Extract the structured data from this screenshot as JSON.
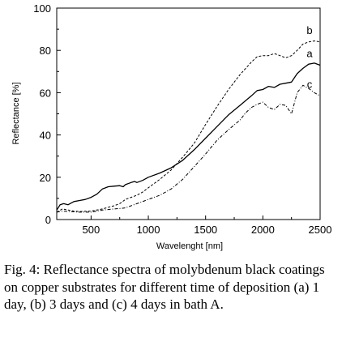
{
  "chart_data": {
    "type": "line",
    "xlabel": "Wavelenght [nm]",
    "ylabel": "Reflectance [%]",
    "xlim": [
      200,
      2500
    ],
    "ylim": [
      0,
      100
    ],
    "xticks": [
      500,
      1000,
      1500,
      2000,
      2500
    ],
    "yticks": [
      0,
      20,
      40,
      60,
      80,
      100
    ],
    "grid": false,
    "series": [
      {
        "name": "a",
        "style": "solid",
        "x": [
          200,
          230,
          260,
          300,
          350,
          400,
          450,
          500,
          550,
          600,
          650,
          700,
          750,
          780,
          800,
          850,
          880,
          900,
          950,
          1000,
          1100,
          1200,
          1300,
          1400,
          1500,
          1600,
          1700,
          1800,
          1900,
          1950,
          2000,
          2050,
          2100,
          2150,
          2200,
          2250,
          2300,
          2350,
          2400,
          2450,
          2500
        ],
        "y": [
          4.5,
          7,
          7.5,
          7,
          8.5,
          9,
          9.5,
          10.5,
          12,
          14.5,
          15.5,
          15.8,
          16,
          15.5,
          16.5,
          17.5,
          18,
          17.5,
          18.5,
          20,
          22,
          24.5,
          28,
          33,
          38.5,
          44,
          49.5,
          54,
          58.5,
          61,
          61.5,
          63,
          62.5,
          64,
          64.5,
          65,
          69,
          71.5,
          73.5,
          74,
          73
        ]
      },
      {
        "name": "b",
        "style": "dashed",
        "x": [
          200,
          250,
          300,
          350,
          400,
          500,
          600,
          700,
          750,
          800,
          850,
          900,
          950,
          1000,
          1100,
          1200,
          1300,
          1400,
          1500,
          1600,
          1700,
          1800,
          1900,
          1950,
          2000,
          2050,
          2100,
          2150,
          2200,
          2250,
          2300,
          2350,
          2400,
          2450,
          2500
        ],
        "y": [
          3.5,
          5,
          4.5,
          4,
          3.8,
          4,
          5,
          6.5,
          7.5,
          9.5,
          10.5,
          11.5,
          13,
          15,
          19,
          23.5,
          29.5,
          36,
          45,
          53.5,
          61.5,
          68.5,
          74.5,
          77,
          77.5,
          77.5,
          78.5,
          77.5,
          76.5,
          77.5,
          80,
          83,
          84,
          84.5,
          84
        ]
      },
      {
        "name": "c",
        "style": "dash-dot",
        "x": [
          200,
          250,
          300,
          400,
          500,
          600,
          700,
          750,
          800,
          850,
          900,
          950,
          1000,
          1100,
          1200,
          1300,
          1400,
          1500,
          1600,
          1700,
          1800,
          1850,
          1900,
          1950,
          2000,
          2050,
          2100,
          2150,
          2200,
          2250,
          2300,
          2350,
          2400,
          2450,
          2500
        ],
        "y": [
          3.5,
          4,
          3.8,
          3.5,
          3.5,
          4.5,
          5,
          5.2,
          5.5,
          6.5,
          7.5,
          8.5,
          9.5,
          11.5,
          14.5,
          19,
          25,
          31,
          37.5,
          42.5,
          47,
          50.5,
          53,
          54.5,
          55.5,
          53,
          52,
          54.5,
          54,
          50,
          60,
          63.5,
          62,
          60,
          58.5
        ]
      }
    ]
  },
  "caption": "Fig. 4: Reflectance spectra of molybdenum black coatings on copper substrates for different time of deposition (a) 1 day, (b) 3 days and (c) 4 days in bath A."
}
